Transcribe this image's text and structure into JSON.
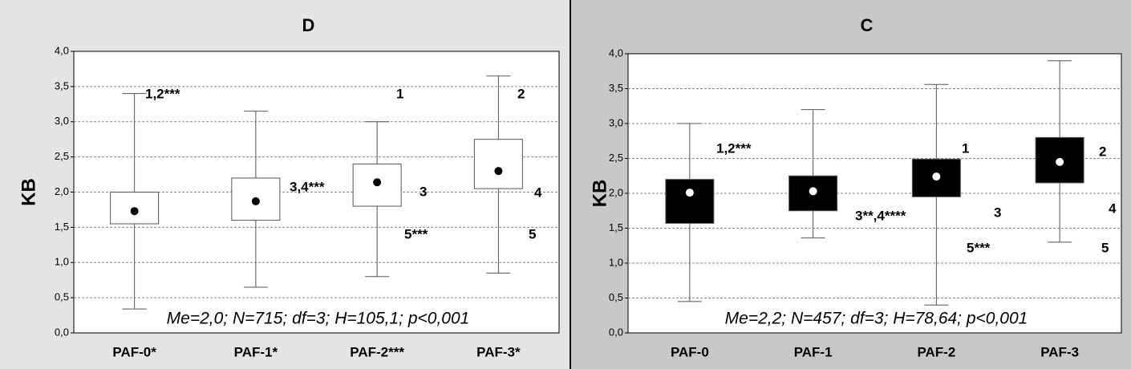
{
  "chart_data": [
    {
      "type": "box",
      "title": "D",
      "ylabel": "KB",
      "categories": [
        "PAF-0*",
        "PAF-1*",
        "PAF-2***",
        "PAF-3*"
      ],
      "boxes": [
        {
          "whisker_low": 0.34,
          "q1": 1.55,
          "median": 1.73,
          "q3": 2.0,
          "whisker_high": 3.4
        },
        {
          "whisker_low": 0.65,
          "q1": 1.6,
          "median": 1.87,
          "q3": 2.2,
          "whisker_high": 3.15
        },
        {
          "whisker_low": 0.8,
          "q1": 1.8,
          "median": 2.14,
          "q3": 2.4,
          "whisker_high": 3.0
        },
        {
          "whisker_low": 0.85,
          "q1": 2.05,
          "median": 2.3,
          "q3": 2.75,
          "whisker_high": 3.65
        }
      ],
      "box_color": "#ffffff",
      "median_color": "#000000",
      "background": "#e4e4e4",
      "ylim": [
        0,
        4
      ],
      "yticks": [
        {
          "value": 0,
          "label": "0,0"
        },
        {
          "value": 0.5,
          "label": "0,5"
        },
        {
          "value": 1,
          "label": "1,0"
        },
        {
          "value": 1.5,
          "label": "1,5"
        },
        {
          "value": 2,
          "label": "2,0"
        },
        {
          "value": 2.5,
          "label": "2,5"
        },
        {
          "value": 3,
          "label": "3,0"
        },
        {
          "value": 3.5,
          "label": "3,5"
        },
        {
          "value": 4,
          "label": "4,0"
        }
      ],
      "grid": true,
      "annotations": [
        "1,2***",
        "1",
        "2",
        "3,4***",
        "3",
        "4",
        "5***",
        "5"
      ],
      "note": "Me=2,0; N=715; df=3; H=105,1; p<0,001"
    },
    {
      "type": "box",
      "title": "C",
      "ylabel": "KB",
      "categories": [
        "PAF-0",
        "PAF-1",
        "PAF-2",
        "PAF-3"
      ],
      "boxes": [
        {
          "whisker_low": 0.45,
          "q1": 1.57,
          "median": 2.01,
          "q3": 2.2,
          "whisker_high": 3.0
        },
        {
          "whisker_low": 1.36,
          "q1": 1.75,
          "median": 2.03,
          "q3": 2.25,
          "whisker_high": 3.2
        },
        {
          "whisker_low": 0.4,
          "q1": 1.95,
          "median": 2.24,
          "q3": 2.49,
          "whisker_high": 3.56
        },
        {
          "whisker_low": 1.3,
          "q1": 2.15,
          "median": 2.45,
          "q3": 2.8,
          "whisker_high": 3.9
        }
      ],
      "box_color": "#000000",
      "median_color": "#ffffff",
      "background": "#c8c8c8",
      "ylim": [
        0,
        4
      ],
      "yticks": [
        {
          "value": 0,
          "label": "0,0"
        },
        {
          "value": 0.5,
          "label": "0,5"
        },
        {
          "value": 1,
          "label": "1,0"
        },
        {
          "value": 1.5,
          "label": "1,5"
        },
        {
          "value": 2,
          "label": "2,0"
        },
        {
          "value": 2.5,
          "label": "2,5"
        },
        {
          "value": 3,
          "label": "3,0"
        },
        {
          "value": 3.5,
          "label": "3,5"
        },
        {
          "value": 4,
          "label": "4,0"
        }
      ],
      "grid": true,
      "annotations": [
        "1,2***",
        "1",
        "2",
        "3**,4****",
        "3",
        "4",
        "5***",
        "5"
      ],
      "note": "Me=2,2; N=457; df=3; H=78,64; p<0,001"
    }
  ]
}
